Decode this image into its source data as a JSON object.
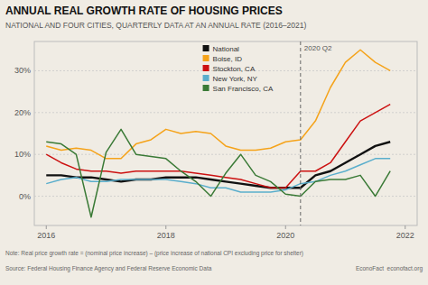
{
  "chart_data": {
    "type": "line",
    "title": "ANNUAL REAL GROWTH RATE OF HOUSING PRICES",
    "subtitle": "NATIONAL AND FOUR CITIES, QUARTERLY DATA AT AN ANNUAL RATE (2016–2021)",
    "notes": [
      "Note: Real price growth rate = (nominal price increase) – (price increase of national CPI excluding price for shelter)",
      "Source: Federal Housing Finance Agency and Federal Reserve Economic Data",
      "EconoFact  econofact.org"
    ],
    "annotations": [
      {
        "text": "2020 Q2",
        "x": 2020.25
      }
    ],
    "x": [
      2016.0,
      2016.25,
      2016.5,
      2016.75,
      2017.0,
      2017.25,
      2017.5,
      2017.75,
      2018.0,
      2018.25,
      2018.5,
      2018.75,
      2019.0,
      2019.25,
      2019.5,
      2019.75,
      2020.0,
      2020.25,
      2020.5,
      2020.75,
      2021.0,
      2021.25,
      2021.5,
      2021.75
    ],
    "series": [
      {
        "name": "National",
        "color": "#111111",
        "values": [
          5.0,
          5.0,
          4.5,
          4.5,
          4.0,
          3.5,
          4.0,
          4.0,
          4.5,
          4.5,
          4.5,
          4.0,
          3.5,
          3.0,
          2.5,
          2.0,
          2.0,
          2.0,
          5.0,
          6.0,
          8.0,
          10.0,
          12.0,
          13.0
        ]
      },
      {
        "name": "Boise, ID",
        "color": "#f5a31a",
        "values": [
          12.0,
          11.0,
          11.5,
          11.0,
          9.0,
          9.0,
          12.5,
          13.5,
          16.0,
          15.0,
          15.5,
          15.0,
          12.0,
          11.0,
          11.0,
          11.5,
          13.0,
          13.5,
          18.0,
          26.0,
          32.0,
          35.0,
          32.0,
          30.0
        ]
      },
      {
        "name": "Stockton, CA",
        "color": "#cc1111",
        "values": [
          10.0,
          8.0,
          6.5,
          6.0,
          6.0,
          5.5,
          6.0,
          6.0,
          6.0,
          6.0,
          5.5,
          5.0,
          4.5,
          4.0,
          3.0,
          2.0,
          2.0,
          6.0,
          6.0,
          8.0,
          13.0,
          18.0,
          20.0,
          22.0
        ]
      },
      {
        "name": "New York, NY",
        "color": "#5aaecc",
        "values": [
          3.0,
          4.0,
          4.5,
          3.5,
          3.5,
          4.0,
          4.0,
          4.0,
          4.0,
          3.5,
          3.0,
          2.0,
          2.0,
          1.0,
          1.0,
          1.0,
          1.5,
          3.0,
          3.5,
          5.0,
          6.0,
          7.5,
          9.0,
          9.0
        ]
      },
      {
        "name": "San Francisco, CA",
        "color": "#3a7a36",
        "values": [
          13.0,
          12.5,
          10.0,
          -5.0,
          10.5,
          16.0,
          10.0,
          9.5,
          9.0,
          6.0,
          3.5,
          0.0,
          5.5,
          10.0,
          5.0,
          3.5,
          0.5,
          0.0,
          3.5,
          4.0,
          4.0,
          5.0,
          0.0,
          6.0
        ]
      }
    ],
    "xlim": [
      2015.8,
      2022.2
    ],
    "ylim": [
      -7,
      37
    ],
    "xticks": [
      2016,
      2018,
      2020,
      2022
    ],
    "yticks": [
      {
        "value": 0,
        "label": "0%"
      },
      {
        "value": 10,
        "label": "10%"
      },
      {
        "value": 20,
        "label": "20%"
      },
      {
        "value": 30,
        "label": "30%"
      }
    ],
    "grid": true,
    "legend": "upper center"
  }
}
